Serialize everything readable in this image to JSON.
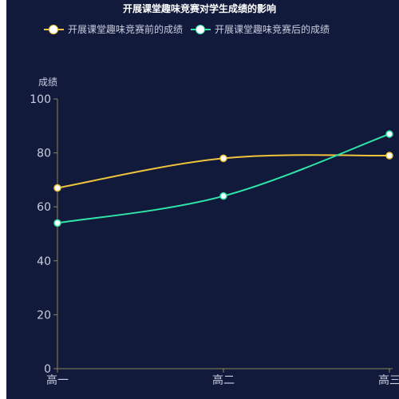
{
  "chart_data": {
    "type": "line",
    "title": "开展课堂趣味竞赛对学生成绩的影响",
    "ylabel": "成绩",
    "xlabel": "",
    "categories": [
      "高一",
      "高二",
      "高三"
    ],
    "ylim": [
      0,
      100
    ],
    "yticks": [
      0,
      20,
      40,
      60,
      80,
      100
    ],
    "smooth": true,
    "grid": false,
    "legend_position": "top-left",
    "series": [
      {
        "name": "开展课堂趣味竞赛前的成绩",
        "values": [
          67,
          78,
          79
        ],
        "color": "#f0c33c"
      },
      {
        "name": "开展课堂趣味竞赛后的成绩",
        "values": [
          54,
          64,
          87
        ],
        "color": "#2ee6a8"
      }
    ]
  },
  "colors": {
    "background": "#121a3b",
    "axis": "#8c8458",
    "text": "#c9cde0"
  }
}
